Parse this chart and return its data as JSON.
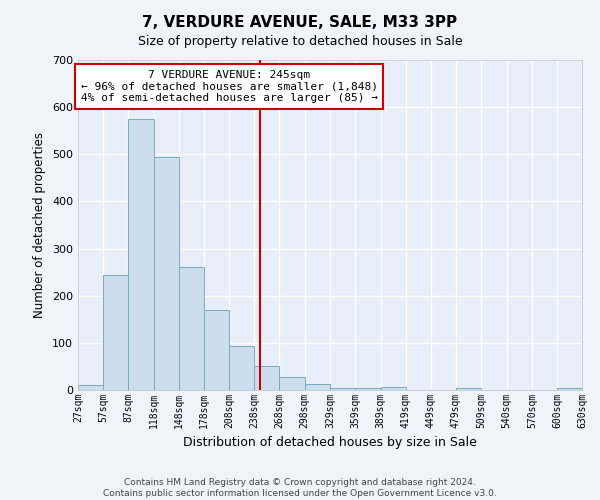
{
  "title": "7, VERDURE AVENUE, SALE, M33 3PP",
  "subtitle": "Size of property relative to detached houses in Sale",
  "xlabel": "Distribution of detached houses by size in Sale",
  "ylabel": "Number of detached properties",
  "bar_color": "#ccdded",
  "bar_edge_color": "#7aaabb",
  "background_color": "#e8eef8",
  "grid_color": "#ffffff",
  "vline_x": 245,
  "vline_color": "#cc0000",
  "annotation_title": "7 VERDURE AVENUE: 245sqm",
  "annotation_line1": "← 96% of detached houses are smaller (1,848)",
  "annotation_line2": "4% of semi-detached houses are larger (85) →",
  "bin_edges": [
    27,
    57,
    87,
    118,
    148,
    178,
    208,
    238,
    268,
    298,
    329,
    359,
    389,
    419,
    449,
    479,
    509,
    540,
    570,
    600,
    630
  ],
  "bar_heights": [
    10,
    245,
    575,
    495,
    260,
    170,
    93,
    50,
    28,
    13,
    5,
    4,
    6,
    0,
    0,
    5,
    0,
    0,
    0,
    5
  ],
  "tick_labels": [
    "27sqm",
    "57sqm",
    "87sqm",
    "118sqm",
    "148sqm",
    "178sqm",
    "208sqm",
    "238sqm",
    "268sqm",
    "298sqm",
    "329sqm",
    "359sqm",
    "389sqm",
    "419sqm",
    "449sqm",
    "479sqm",
    "509sqm",
    "540sqm",
    "570sqm",
    "600sqm",
    "630sqm"
  ],
  "ylim": [
    0,
    700
  ],
  "yticks": [
    0,
    100,
    200,
    300,
    400,
    500,
    600,
    700
  ],
  "footnote1": "Contains HM Land Registry data © Crown copyright and database right 2024.",
  "footnote2": "Contains public sector information licensed under the Open Government Licence v3.0."
}
